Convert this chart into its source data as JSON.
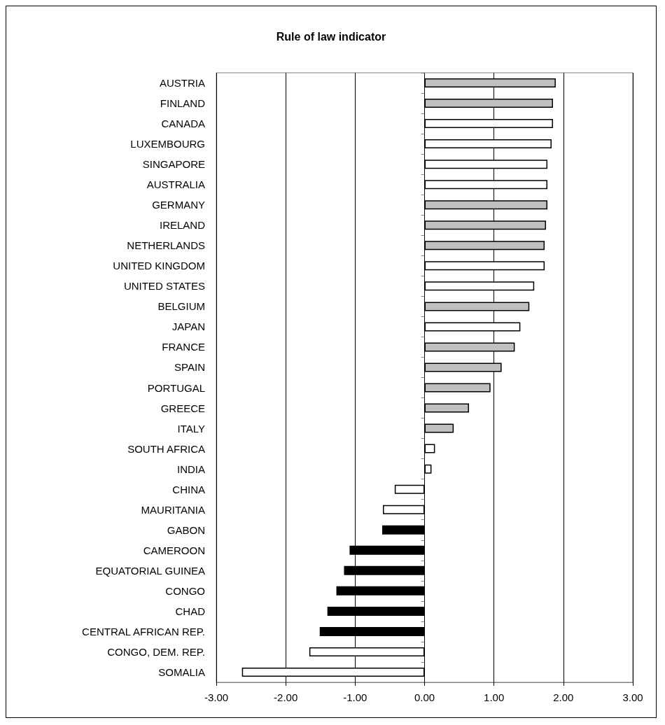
{
  "chart_data": {
    "type": "bar",
    "title": "Rule of law indicator",
    "orientation": "horizontal",
    "categories": [
      "AUSTRIA",
      "FINLAND",
      "CANADA",
      "LUXEMBOURG",
      "SINGAPORE",
      "AUSTRALIA",
      "GERMANY",
      "IRELAND",
      "NETHERLANDS",
      "UNITED KINGDOM",
      "UNITED STATES",
      "BELGIUM",
      "JAPAN",
      "FRANCE",
      "SPAIN",
      "PORTUGAL",
      "GREECE",
      "ITALY",
      "SOUTH AFRICA",
      "INDIA",
      "CHINA",
      "MAURITANIA",
      "GABON",
      "CAMEROON",
      "EQUATORIAL GUINEA",
      "CONGO",
      "CHAD",
      "CENTRAL AFRICAN REP.",
      "CONGO, DEM. REP.",
      "SOMALIA"
    ],
    "values": [
      1.89,
      1.85,
      1.85,
      1.83,
      1.77,
      1.77,
      1.77,
      1.75,
      1.73,
      1.73,
      1.58,
      1.51,
      1.38,
      1.3,
      1.11,
      0.95,
      0.64,
      0.42,
      0.15,
      0.1,
      -0.43,
      -0.6,
      -0.61,
      -1.08,
      -1.16,
      -1.27,
      -1.4,
      -1.51,
      -1.66,
      -2.63
    ],
    "colors": [
      "#c0c0c0",
      "#c0c0c0",
      "#ffffff",
      "#ffffff",
      "#ffffff",
      "#ffffff",
      "#c0c0c0",
      "#c0c0c0",
      "#c0c0c0",
      "#ffffff",
      "#ffffff",
      "#c0c0c0",
      "#ffffff",
      "#c0c0c0",
      "#c0c0c0",
      "#c0c0c0",
      "#c0c0c0",
      "#c0c0c0",
      "#ffffff",
      "#ffffff",
      "#ffffff",
      "#ffffff",
      "#000000",
      "#000000",
      "#000000",
      "#000000",
      "#000000",
      "#000000",
      "#ffffff",
      "#ffffff"
    ],
    "xlim": [
      -3,
      3
    ],
    "xticks": [
      {
        "value": -3,
        "label": "-3.00"
      },
      {
        "value": -2,
        "label": "-2.00"
      },
      {
        "value": -1,
        "label": "-1.00"
      },
      {
        "value": 0,
        "label": "0.00"
      },
      {
        "value": 1,
        "label": "1.00"
      },
      {
        "value": 2,
        "label": "2.00"
      },
      {
        "value": 3,
        "label": "3.00"
      }
    ],
    "grid": "x"
  }
}
